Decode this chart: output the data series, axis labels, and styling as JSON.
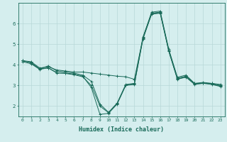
{
  "title": "",
  "xlabel": "Humidex (Indice chaleur)",
  "ylabel": "",
  "background_color": "#d5eeee",
  "grid_color": "#b8d8d8",
  "line_color": "#1a6b5a",
  "xlim": [
    -0.5,
    23.5
  ],
  "ylim": [
    1.5,
    7.0
  ],
  "yticks": [
    2,
    3,
    4,
    5,
    6
  ],
  "xticks": [
    0,
    1,
    2,
    3,
    4,
    5,
    6,
    7,
    8,
    9,
    10,
    11,
    12,
    13,
    14,
    15,
    16,
    17,
    18,
    19,
    20,
    21,
    22,
    23
  ],
  "lines": [
    [
      4.2,
      4.15,
      3.85,
      3.9,
      3.75,
      3.7,
      3.65,
      3.65,
      3.6,
      3.55,
      3.5,
      3.45,
      3.42,
      3.3,
      5.3,
      6.55,
      6.6,
      4.75,
      3.4,
      3.5,
      3.1,
      3.15,
      3.1,
      3.05
    ],
    [
      4.2,
      4.1,
      3.8,
      3.95,
      3.7,
      3.65,
      3.6,
      3.5,
      3.2,
      2.1,
      1.7,
      2.15,
      3.05,
      3.1,
      5.35,
      6.5,
      6.55,
      4.7,
      3.35,
      3.45,
      3.1,
      3.1,
      3.1,
      3.0
    ],
    [
      4.2,
      4.1,
      3.8,
      3.85,
      3.6,
      3.6,
      3.55,
      3.45,
      2.9,
      1.6,
      1.65,
      2.1,
      3.0,
      3.05,
      5.25,
      6.45,
      6.5,
      4.65,
      3.3,
      3.4,
      3.05,
      3.1,
      3.05,
      2.95
    ],
    [
      4.15,
      4.05,
      3.78,
      3.85,
      3.62,
      3.58,
      3.52,
      3.42,
      3.0,
      2.0,
      1.68,
      2.12,
      3.02,
      3.08,
      5.28,
      6.48,
      6.52,
      4.68,
      3.32,
      3.42,
      3.07,
      3.12,
      3.07,
      2.97
    ]
  ],
  "tick_fontsize": 4.5,
  "xlabel_fontsize": 6.0,
  "marker_size": 2.5,
  "line_width": 0.7
}
